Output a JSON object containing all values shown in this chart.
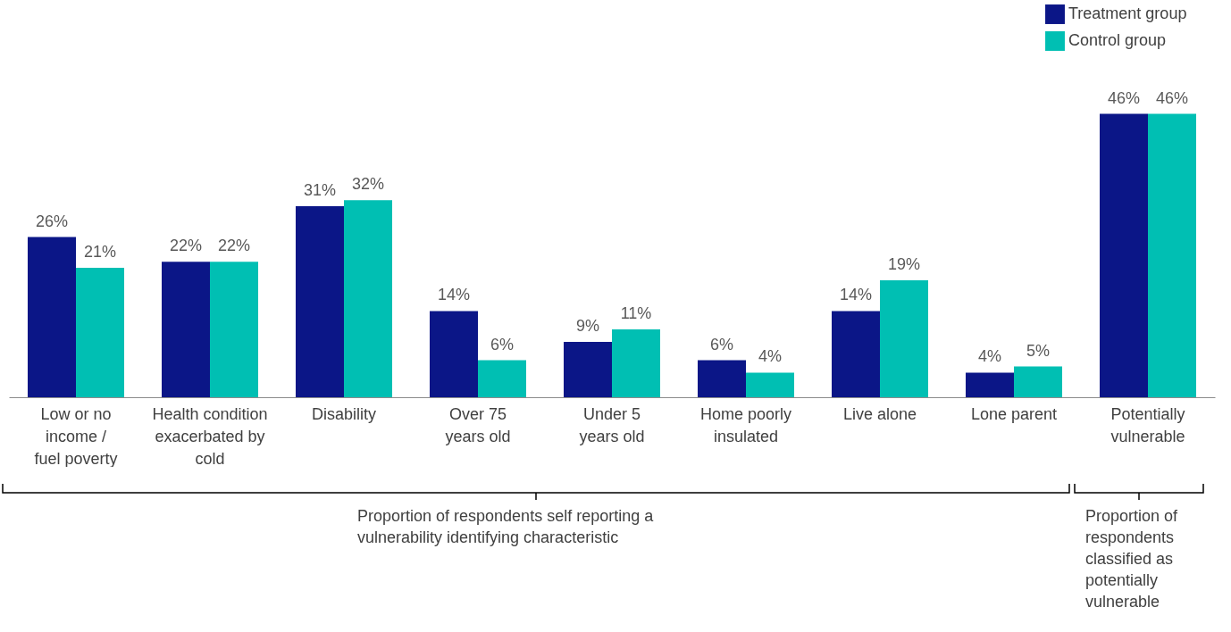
{
  "chart_data": {
    "type": "bar",
    "categories": [
      "Low or no\nincome /\nfuel poverty",
      "Health condition\nexacerbated by\ncold",
      "Disability",
      "Over 75\nyears old",
      "Under 5\nyears old",
      "Home poorly\ninsulated",
      "Live alone",
      "Lone parent",
      "Potentially\nvulnerable"
    ],
    "series": [
      {
        "name": "Treatment group",
        "color": "#0b1687",
        "values": [
          26,
          22,
          31,
          14,
          9,
          6,
          14,
          4,
          46
        ],
        "value_labels": [
          "26%",
          "22%",
          "31%",
          "14%",
          "9%",
          "6%",
          "14%",
          "4%",
          "46%"
        ]
      },
      {
        "name": "Control group",
        "color": "#00bfb3",
        "values": [
          21,
          22,
          32,
          6,
          11,
          4,
          19,
          5,
          46
        ],
        "value_labels": [
          "21%",
          "22%",
          "32%",
          "6%",
          "11%",
          "4%",
          "19%",
          "5%",
          "46%"
        ]
      }
    ],
    "legend": "top right",
    "grid": false,
    "annotations": [
      "Proportion of respondents self reporting a vulnerability identifying characteristic",
      "Proportion of respondents classified as potentially vulnerable"
    ]
  }
}
